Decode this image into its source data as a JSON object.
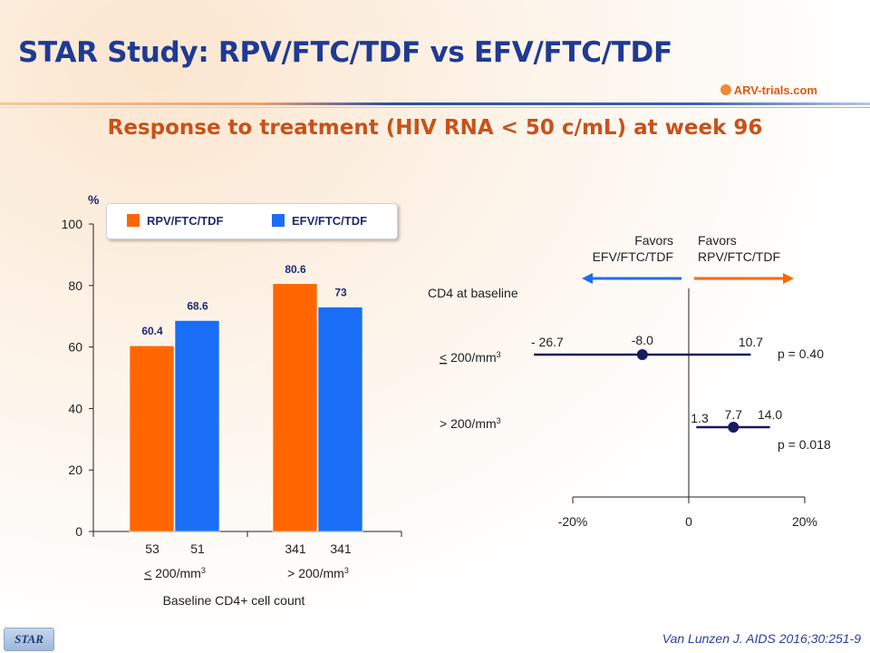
{
  "slide": {
    "title": "STAR Study: RPV/FTC/TDF vs EFV/FTC/TDF",
    "subtitle": "Response to treatment (HIV RNA < 50 c/mL) at week 96",
    "logo_text": "ARV-trials.com",
    "footer_tag": "STAR",
    "citation": "Van Lunzen J. AIDS 2016;30:251-9"
  },
  "colors": {
    "rpv": "#ff6600",
    "efv": "#1a6ef5",
    "title": "#1f3a93",
    "subtitle": "#c8521a",
    "point": "#1a1a5e"
  },
  "chart_data": [
    {
      "type": "bar",
      "ylabel": "%",
      "ylim": [
        0,
        100
      ],
      "yticks": [
        0,
        20,
        40,
        60,
        80,
        100
      ],
      "xlabel": "Baseline CD4+ cell count",
      "categories": [
        "≤ 200/mm³",
        "> 200/mm³"
      ],
      "series": [
        {
          "name": "RPV/FTC/TDF",
          "values": [
            60.4,
            80.6
          ],
          "labels": [
            "60.4",
            "80.6"
          ],
          "n": [
            "53",
            "341"
          ]
        },
        {
          "name": "EFV/FTC/TDF",
          "values": [
            68.6,
            73
          ],
          "labels": [
            "68.6",
            "73"
          ],
          "n": [
            "51",
            "341"
          ]
        }
      ],
      "legend_position": "top"
    },
    {
      "type": "forest",
      "row_header": "CD4 at baseline",
      "favors_left": [
        "Favors",
        "EFV/FTC/TDF"
      ],
      "favors_right": [
        "Favors",
        "RPV/FTC/TDF"
      ],
      "xlim": [
        -20,
        20
      ],
      "xticks": [
        "-20%",
        "0",
        "20%"
      ],
      "rows": [
        {
          "label": "≤ 200/mm³",
          "estimate": -8.0,
          "lower": -26.7,
          "upper": 10.7,
          "estimate_label": "-8.0",
          "lower_label": "- 26.7",
          "upper_label": "10.7",
          "p": "p = 0.40"
        },
        {
          "label": "> 200/mm³",
          "estimate": 7.7,
          "lower": 1.3,
          "upper": 14.0,
          "estimate_label": "7.7",
          "lower_label": "1.3",
          "upper_label": "14.0",
          "p": "p = 0.018"
        }
      ]
    }
  ]
}
